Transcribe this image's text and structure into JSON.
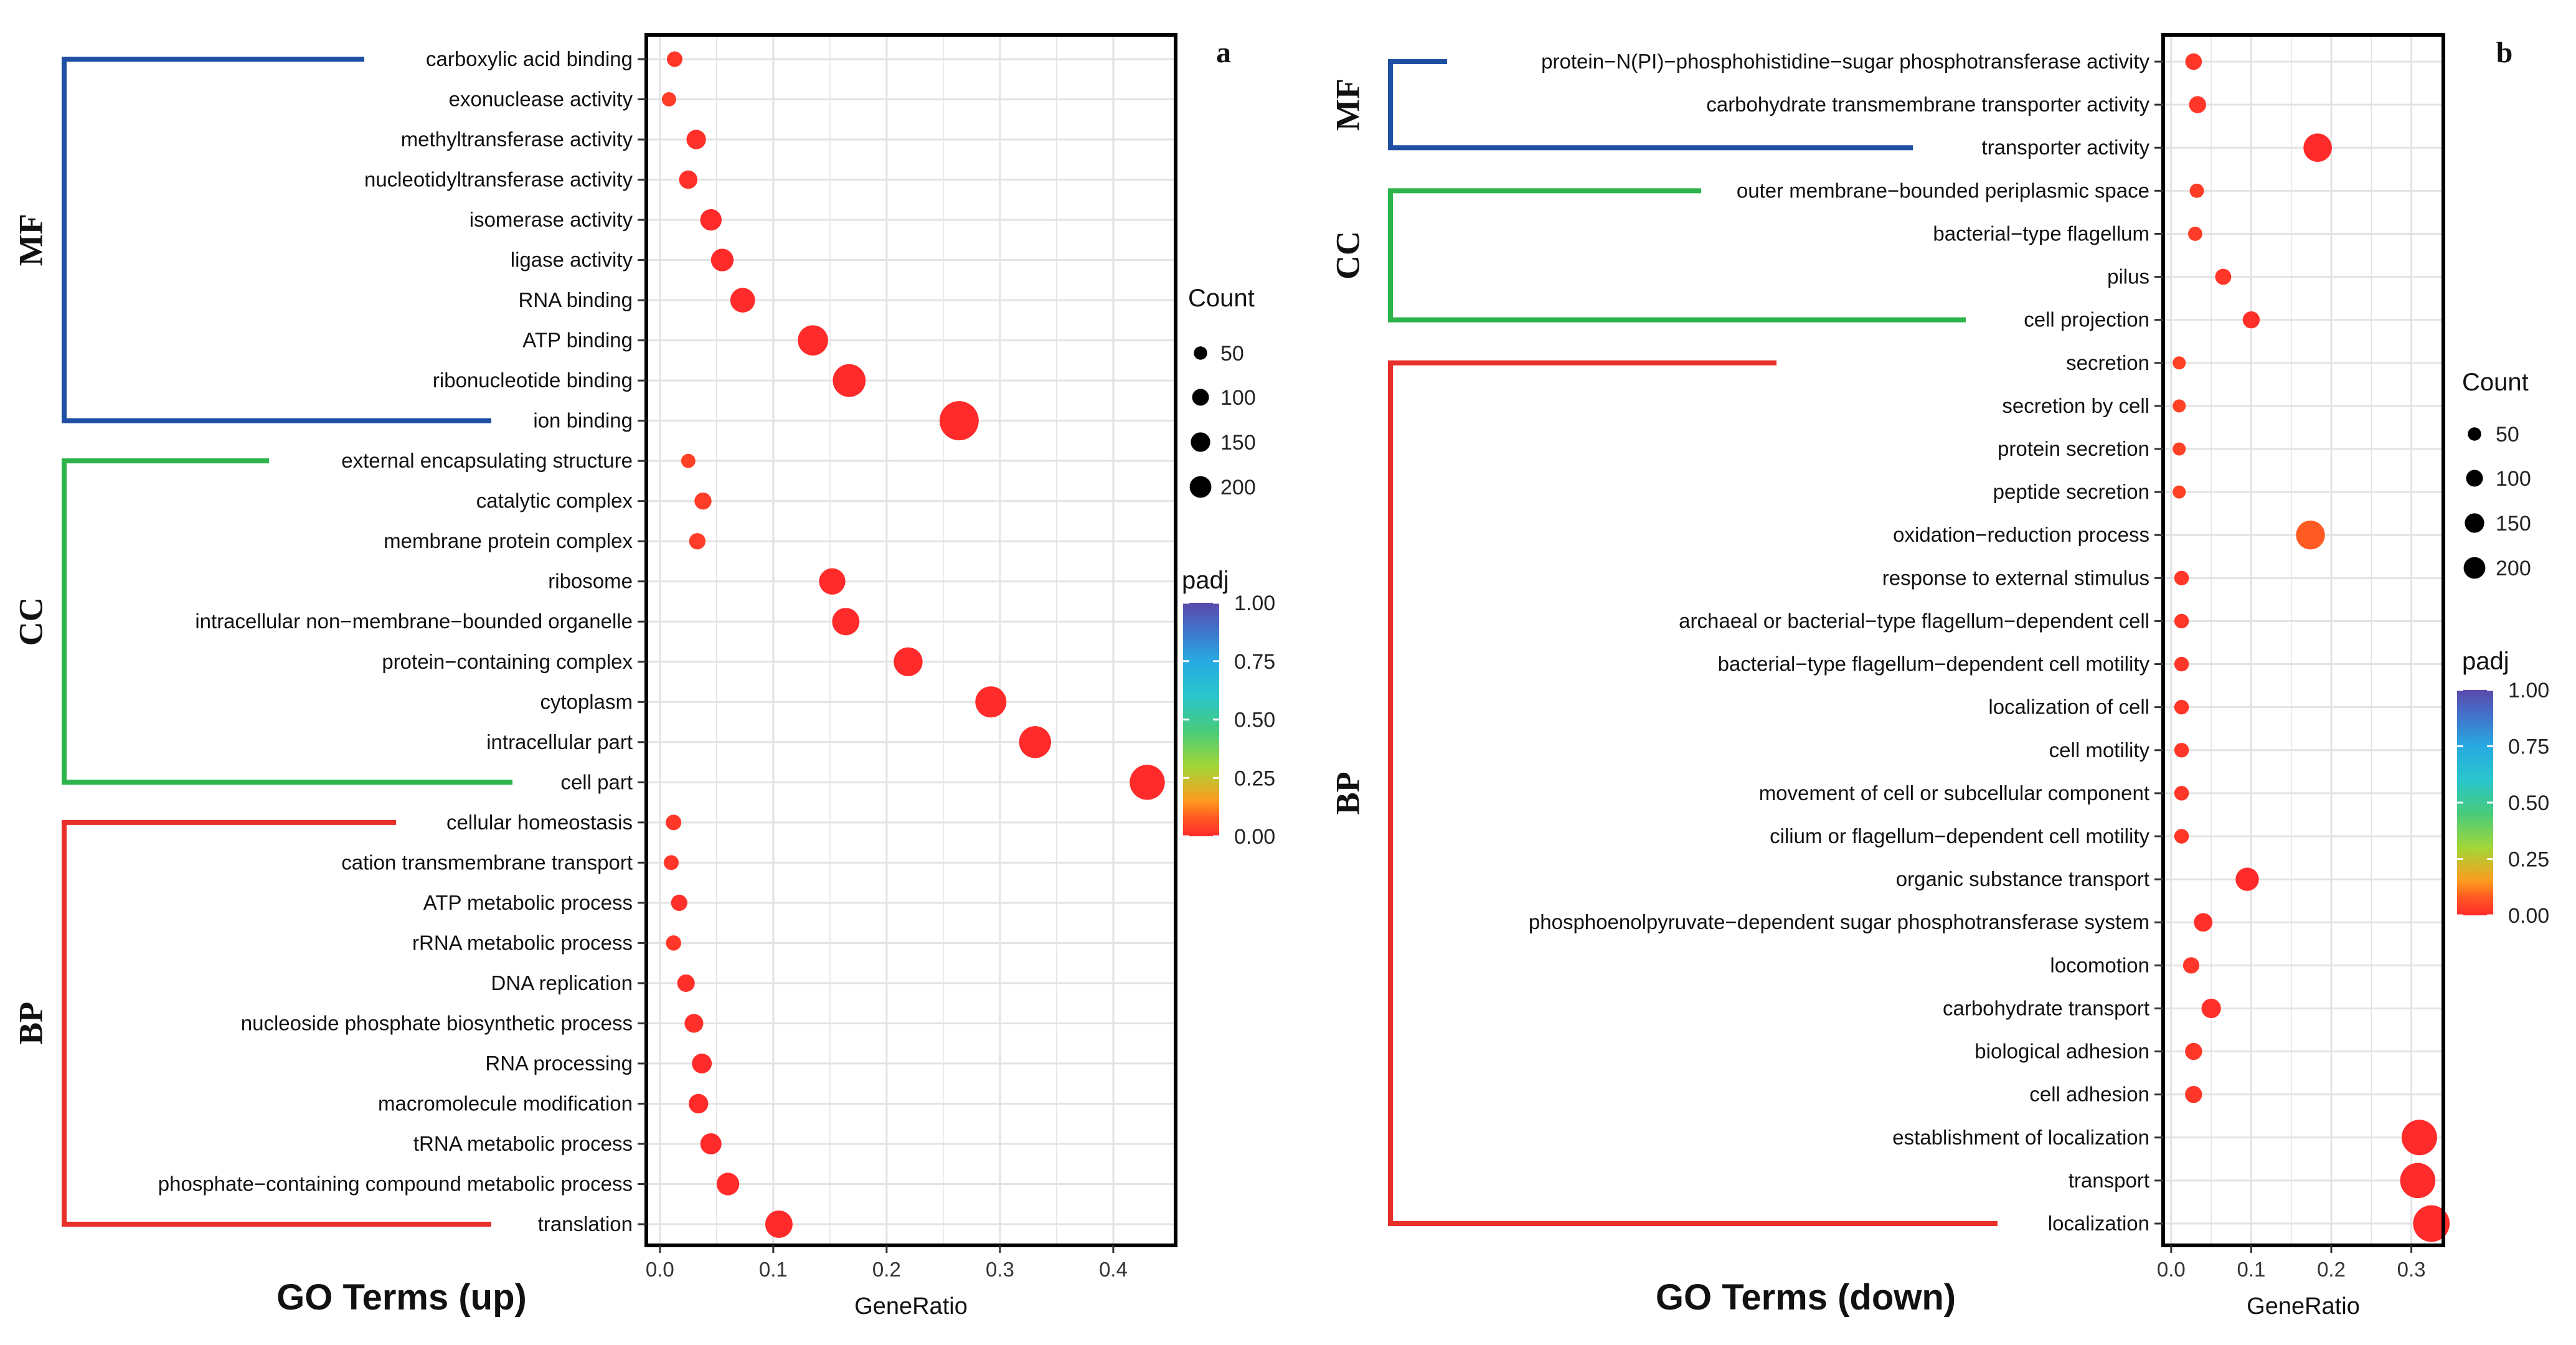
{
  "chart_data": [
    {
      "type": "scatter",
      "panel": "a",
      "title": "GO Terms (up)",
      "xlabel": "GeneRatio",
      "ylabel": "",
      "xlim": [
        -0.012,
        0.455
      ],
      "xticks": [
        0.0,
        0.1,
        0.2,
        0.3,
        0.4
      ],
      "xtick_labels": [
        "0.0",
        "0.1",
        "0.2",
        "0.3",
        "0.4"
      ],
      "grid": true,
      "legend_position": "right",
      "size_legend": {
        "title": "Count",
        "values": [
          50,
          100,
          150,
          200
        ],
        "labels": [
          "50",
          "100",
          "150",
          "200"
        ]
      },
      "color_legend": {
        "title": "padj",
        "values": [
          1.0,
          0.75,
          0.5,
          0.25,
          0.0
        ],
        "labels": [
          "1.00",
          "0.75",
          "0.50",
          "0.25",
          "0.00"
        ]
      },
      "groups": [
        {
          "name": "MF",
          "color": "#1f4fa3",
          "terms": [
            {
              "term": "carboxylic acid binding",
              "x": 0.013,
              "count": 12,
              "padj": 0.02
            },
            {
              "term": "exonuclease activity",
              "x": 0.008,
              "count": 8,
              "padj": 0.03
            },
            {
              "term": "methyltransferase activity",
              "x": 0.032,
              "count": 30,
              "padj": 0.01
            },
            {
              "term": "nucleotidyltransferase activity",
              "x": 0.025,
              "count": 24,
              "padj": 0.01
            },
            {
              "term": "isomerase activity",
              "x": 0.045,
              "count": 42,
              "padj": 0.0
            },
            {
              "term": "ligase activity",
              "x": 0.055,
              "count": 50,
              "padj": 0.0
            },
            {
              "term": "RNA binding",
              "x": 0.073,
              "count": 66,
              "padj": 0.0
            },
            {
              "term": "ATP binding",
              "x": 0.135,
              "count": 120,
              "padj": 0.0
            },
            {
              "term": "ribonucleotide binding",
              "x": 0.167,
              "count": 150,
              "padj": 0.0
            },
            {
              "term": "ion binding",
              "x": 0.264,
              "count": 240,
              "padj": 0.0
            }
          ]
        },
        {
          "name": "CC",
          "color": "#2cb34a",
          "terms": [
            {
              "term": "external encapsulating structure",
              "x": 0.025,
              "count": 8,
              "padj": 0.04
            },
            {
              "term": "catalytic complex",
              "x": 0.038,
              "count": 18,
              "padj": 0.03
            },
            {
              "term": "membrane protein complex",
              "x": 0.033,
              "count": 15,
              "padj": 0.03
            },
            {
              "term": "ribosome",
              "x": 0.152,
              "count": 80,
              "padj": 0.0
            },
            {
              "term": "intracellular non−membrane−bounded organelle",
              "x": 0.164,
              "count": 90,
              "padj": 0.0
            },
            {
              "term": "protein−containing complex",
              "x": 0.219,
              "count": 105,
              "padj": 0.0
            },
            {
              "term": "cytoplasm",
              "x": 0.292,
              "count": 130,
              "padj": 0.0
            },
            {
              "term": "intracellular part",
              "x": 0.331,
              "count": 140,
              "padj": 0.0
            },
            {
              "term": "cell part",
              "x": 0.43,
              "count": 180,
              "padj": 0.0
            }
          ]
        },
        {
          "name": "BP",
          "color": "#e8302a",
          "terms": [
            {
              "term": "cellular homeostasis",
              "x": 0.012,
              "count": 12,
              "padj": 0.02
            },
            {
              "term": "cation transmembrane transport",
              "x": 0.01,
              "count": 10,
              "padj": 0.02
            },
            {
              "term": "ATP metabolic process",
              "x": 0.017,
              "count": 15,
              "padj": 0.01
            },
            {
              "term": "rRNA metabolic process",
              "x": 0.012,
              "count": 11,
              "padj": 0.02
            },
            {
              "term": "DNA replication",
              "x": 0.023,
              "count": 20,
              "padj": 0.01
            },
            {
              "term": "nucleoside phosphate biosynthetic process",
              "x": 0.03,
              "count": 26,
              "padj": 0.01
            },
            {
              "term": "RNA processing",
              "x": 0.037,
              "count": 32,
              "padj": 0.0
            },
            {
              "term": "macromolecule modification",
              "x": 0.034,
              "count": 30,
              "padj": 0.0
            },
            {
              "term": "tRNA metabolic process",
              "x": 0.045,
              "count": 40,
              "padj": 0.0
            },
            {
              "term": "phosphate−containing compound metabolic process",
              "x": 0.06,
              "count": 50,
              "padj": 0.0
            },
            {
              "term": "translation",
              "x": 0.105,
              "count": 90,
              "padj": 0.0
            }
          ]
        }
      ]
    },
    {
      "type": "scatter",
      "panel": "b",
      "title": "GO Terms (down)",
      "xlabel": "GeneRatio",
      "ylabel": "",
      "xlim": [
        -0.01,
        0.34
      ],
      "xticks": [
        0.0,
        0.1,
        0.2,
        0.3
      ],
      "xtick_labels": [
        "0.0",
        "0.1",
        "0.2",
        "0.3"
      ],
      "grid": true,
      "legend_position": "right",
      "size_legend": {
        "title": "Count",
        "values": [
          50,
          100,
          150,
          200
        ],
        "labels": [
          "50",
          "100",
          "150",
          "200"
        ]
      },
      "color_legend": {
        "title": "padj",
        "values": [
          1.0,
          0.75,
          0.5,
          0.25,
          0.0
        ],
        "labels": [
          "1.00",
          "0.75",
          "0.50",
          "0.25",
          "0.00"
        ]
      },
      "groups": [
        {
          "name": "MF",
          "color": "#1f4fa3",
          "terms": [
            {
              "term": "protein−N(PI)−phosphohistidine−sugar phosphotransferase activity",
              "x": 0.028,
              "count": 16,
              "padj": 0.02
            },
            {
              "term": "carbohydrate transmembrane transporter activity",
              "x": 0.033,
              "count": 18,
              "padj": 0.02
            },
            {
              "term": "transporter activity",
              "x": 0.183,
              "count": 100,
              "padj": 0.0
            }
          ]
        },
        {
          "name": "CC",
          "color": "#2cb34a",
          "terms": [
            {
              "term": "outer membrane−bounded periplasmic space",
              "x": 0.032,
              "count": 8,
              "padj": 0.03
            },
            {
              "term": "bacterial−type flagellum",
              "x": 0.03,
              "count": 8,
              "padj": 0.03
            },
            {
              "term": "pilus",
              "x": 0.065,
              "count": 14,
              "padj": 0.02
            },
            {
              "term": "cell projection",
              "x": 0.1,
              "count": 18,
              "padj": 0.01
            }
          ]
        },
        {
          "name": "BP",
          "color": "#e8302a",
          "terms": [
            {
              "term": "secretion",
              "x": 0.01,
              "count": 5,
              "padj": 0.04
            },
            {
              "term": "secretion by cell",
              "x": 0.01,
              "count": 5,
              "padj": 0.04
            },
            {
              "term": "protein secretion",
              "x": 0.01,
              "count": 5,
              "padj": 0.04
            },
            {
              "term": "peptide secretion",
              "x": 0.01,
              "count": 5,
              "padj": 0.04
            },
            {
              "term": "oxidation−reduction process",
              "x": 0.174,
              "count": 105,
              "padj": 0.08
            },
            {
              "term": "response to external stimulus",
              "x": 0.013,
              "count": 9,
              "padj": 0.02
            },
            {
              "term": "archaeal or bacterial−type flagellum−dependent cell",
              "x": 0.013,
              "count": 9,
              "padj": 0.02
            },
            {
              "term": "bacterial−type flagellum−dependent cell motility",
              "x": 0.013,
              "count": 9,
              "padj": 0.02
            },
            {
              "term": "localization of cell",
              "x": 0.013,
              "count": 9,
              "padj": 0.02
            },
            {
              "term": "cell motility",
              "x": 0.013,
              "count": 9,
              "padj": 0.02
            },
            {
              "term": "movement of cell or subcellular component",
              "x": 0.013,
              "count": 9,
              "padj": 0.02
            },
            {
              "term": "cilium or flagellum−dependent cell motility",
              "x": 0.013,
              "count": 9,
              "padj": 0.02
            },
            {
              "term": "organic substance transport",
              "x": 0.095,
              "count": 55,
              "padj": 0.0
            },
            {
              "term": "phosphoenolpyruvate−dependent sugar phosphotransferase system",
              "x": 0.04,
              "count": 25,
              "padj": 0.01
            },
            {
              "term": "locomotion",
              "x": 0.025,
              "count": 15,
              "padj": 0.02
            },
            {
              "term": "carbohydrate transport",
              "x": 0.05,
              "count": 30,
              "padj": 0.01
            },
            {
              "term": "biological adhesion",
              "x": 0.028,
              "count": 18,
              "padj": 0.02
            },
            {
              "term": "cell adhesion",
              "x": 0.028,
              "count": 18,
              "padj": 0.02
            },
            {
              "term": "establishment of localization",
              "x": 0.31,
              "count": 185,
              "padj": 0.0
            },
            {
              "term": "transport",
              "x": 0.308,
              "count": 182,
              "padj": 0.0
            },
            {
              "term": "localization",
              "x": 0.325,
              "count": 200,
              "padj": 0.0
            }
          ]
        }
      ]
    }
  ]
}
